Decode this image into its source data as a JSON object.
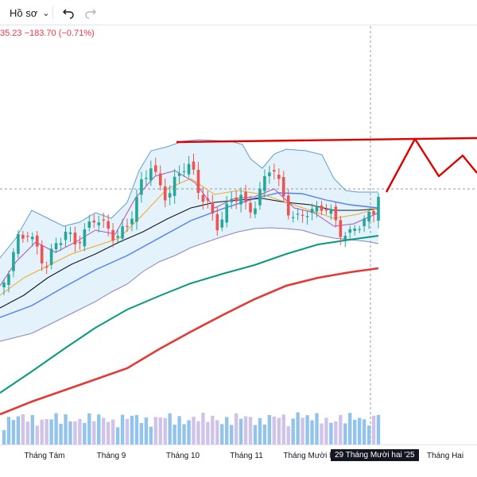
{
  "toolbar": {
    "profile_label": "Hồ sơ",
    "profile_caret": "⌄",
    "undo_icon": "undo-icon",
    "redo_icon": "redo-icon"
  },
  "price_info": {
    "text": "35.23 −183.70 (−0.71%)",
    "color": "#f23645"
  },
  "chart_data": {
    "type": "candlestick",
    "x_tick_labels": [
      "Tháng Tám",
      "Tháng 9",
      "Tháng 10",
      "Tháng 11",
      "Tháng Mười h",
      "Tháng Hai"
    ],
    "crosshair_label": "29 Tháng Mười hai '25",
    "resistance_line": "horizontal red line across recent highs",
    "forecast_path": "red zig-zag projection to the right of the last candle",
    "overlays": [
      "Bollinger Bands (blue, shaded)",
      "moving averages (black, orange, purple, blue)",
      "long MA (green)",
      "long MA (red)"
    ],
    "volume_histogram": true,
    "colors": {
      "up": "#26a69a",
      "down": "#ef5350",
      "boll_fill": "#dbeefb",
      "boll_line": "#5a9fd6",
      "ma_green": "#089981",
      "ma_red": "#e53935",
      "resistance": "#e00000",
      "volume": "#7fb8e8"
    }
  }
}
